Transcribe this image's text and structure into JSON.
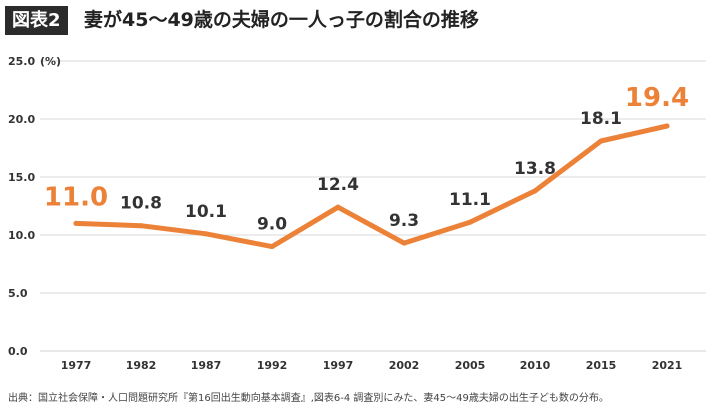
{
  "header": {
    "badge": "図表2",
    "title": "妻が45〜49歳の夫婦の一人っ子の割合の推移"
  },
  "chart_data": {
    "type": "line",
    "title": "妻が45〜49歳の夫婦の一人っ子の割合の推移",
    "x": [
      "1977",
      "1982",
      "1987",
      "1992",
      "1997",
      "2002",
      "2005",
      "2010",
      "2015",
      "2021"
    ],
    "series": [
      {
        "values": [
          11.0,
          10.8,
          10.1,
          9.0,
          12.4,
          9.3,
          11.1,
          13.8,
          18.1,
          19.4
        ]
      }
    ],
    "data_labels": [
      "11.0",
      "10.8",
      "10.1",
      "9.0",
      "12.4",
      "9.3",
      "11.1",
      "13.8",
      "18.1",
      "19.4"
    ],
    "highlight_indices": [
      0,
      9
    ],
    "y_ticks": [
      "0.0",
      "5.0",
      "10.0",
      "15.0",
      "20.0",
      "25.0"
    ],
    "y_unit": "(%)",
    "ylim": [
      0,
      25
    ],
    "grid": "horizontal",
    "colors": {
      "line": "#ec8238",
      "highlight_label": "#ec8238",
      "label": "#333333",
      "grid": "#d9d9d9"
    }
  },
  "source": "出典：国立社会保障・人口問題研究所『第16回出生動向基本調査』,図表6-4 調査別にみた、妻45〜49歳夫婦の出生子ども数の分布。"
}
